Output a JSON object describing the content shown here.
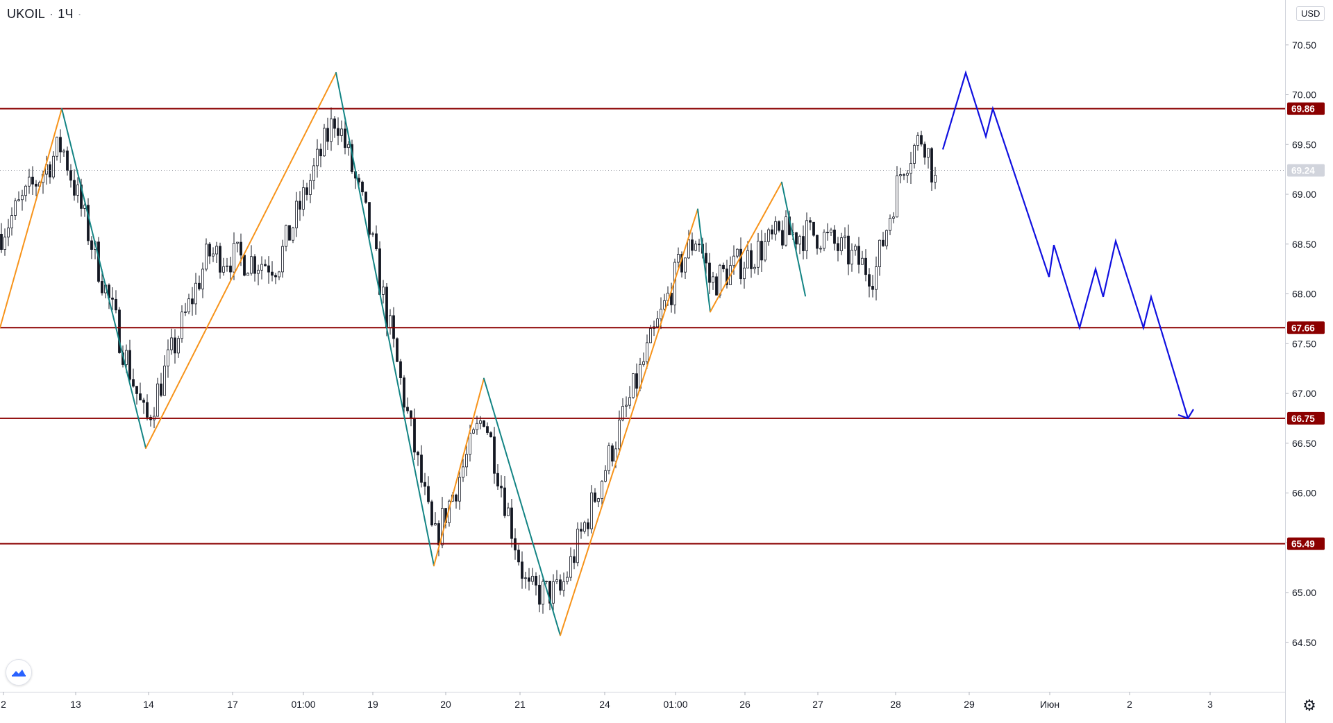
{
  "header": {
    "symbol": "UKOIL",
    "interval": "1Ч",
    "menu_dot": "·",
    "currency": "USD"
  },
  "chart_data": {
    "type": "candlestick",
    "title": "UKOIL · 1Ч",
    "y_axis": {
      "ticks": [
        64.5,
        65.0,
        65.5,
        66.0,
        66.5,
        67.0,
        67.5,
        68.0,
        68.5,
        69.0,
        69.5,
        70.0,
        70.5
      ],
      "tick_labels": [
        "64.50",
        "65.00",
        "65.50",
        "66.00",
        "66.50",
        "67.00",
        "67.50",
        "68.00",
        "68.50",
        "69.00",
        "69.50",
        "70.00",
        "70.50"
      ],
      "range": [
        64.0,
        71.0
      ]
    },
    "x_axis": {
      "labels": [
        "2",
        "13",
        "14",
        "17",
        "01:00",
        "19",
        "20",
        "21",
        "24",
        "01:00",
        "26",
        "27",
        "28",
        "29",
        "Июн",
        "2",
        "3"
      ]
    },
    "current_price": "69.24",
    "levels": [
      {
        "label": "69.86",
        "value": 69.86
      },
      {
        "label": "67.66",
        "value": 67.66
      },
      {
        "label": "66.75",
        "value": 66.75
      },
      {
        "label": "65.49",
        "value": 65.49
      }
    ],
    "zigzag_points": [
      [
        0,
        67.66
      ],
      [
        89,
        69.86
      ],
      [
        210,
        66.45
      ],
      [
        484,
        70.22
      ],
      [
        625,
        65.27
      ],
      [
        697,
        67.15
      ],
      [
        807,
        64.57
      ],
      [
        1005,
        68.85
      ],
      [
        1023,
        67.82
      ],
      [
        1126,
        69.12
      ],
      [
        1160,
        67.98
      ]
    ],
    "forecast_path": [
      [
        1358,
        69.45
      ],
      [
        1391,
        70.22
      ],
      [
        1420,
        69.58
      ],
      [
        1430,
        69.86
      ],
      [
        1511,
        68.17
      ],
      [
        1518,
        68.49
      ],
      [
        1555,
        67.66
      ],
      [
        1578,
        68.25
      ],
      [
        1589,
        67.97
      ],
      [
        1607,
        68.53
      ],
      [
        1647,
        67.66
      ],
      [
        1658,
        67.97
      ],
      [
        1711,
        66.75
      ]
    ],
    "candle_trend_anchors": [
      [
        0,
        68.6
      ],
      [
        89,
        69.5
      ],
      [
        210,
        66.7
      ],
      [
        300,
        68.4
      ],
      [
        400,
        68.3
      ],
      [
        484,
        69.8
      ],
      [
        530,
        68.7
      ],
      [
        625,
        65.5
      ],
      [
        697,
        66.8
      ],
      [
        760,
        65.0
      ],
      [
        807,
        65.0
      ],
      [
        900,
        66.8
      ],
      [
        980,
        68.3
      ],
      [
        1005,
        68.6
      ],
      [
        1023,
        68.1
      ],
      [
        1126,
        68.6
      ],
      [
        1180,
        68.6
      ],
      [
        1260,
        68.2
      ],
      [
        1300,
        69.3
      ],
      [
        1330,
        69.6
      ],
      [
        1348,
        69.1
      ]
    ],
    "x_positions": [
      5,
      109,
      214,
      335,
      437,
      537,
      642,
      749,
      871,
      973,
      1073,
      1178,
      1290,
      1396,
      1512,
      1627,
      1743
    ],
    "colors": {
      "level_line": "#8b0000",
      "zigzag_up": "#f7931a",
      "zigzag_down": "#138484",
      "forecast": "#1010e0",
      "candle": "#131722"
    },
    "grid": false,
    "legend": "none"
  }
}
